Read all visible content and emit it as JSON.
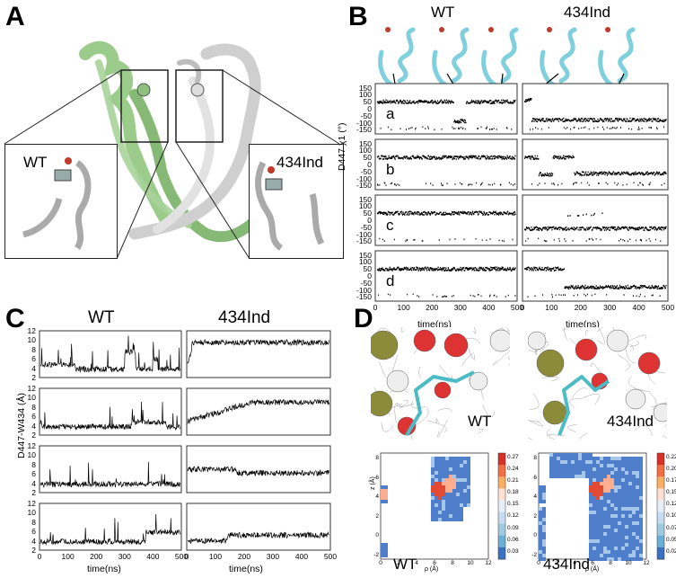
{
  "panels": {
    "A": {
      "letter": "A",
      "wt_label": "WT",
      "mut_label": "434Ind"
    },
    "B": {
      "letter": "B",
      "wt_label": "WT",
      "mut_label": "434Ind",
      "ylabel": "D447 χ1 (°)",
      "xlabel": "time(ns)",
      "row_labels": [
        "a",
        "b",
        "c",
        "d"
      ],
      "yticks": [
        "150",
        "100",
        "50",
        "0",
        "-50",
        "-100",
        "-150"
      ],
      "xticks": [
        "0",
        "100",
        "200",
        "300",
        "400",
        "500"
      ]
    },
    "C": {
      "letter": "C",
      "wt_label": "WT",
      "mut_label": "434Ind",
      "ylabel": "D447-W434 (Å)",
      "xlabel": "time(ns)",
      "yticks": [
        "12",
        "10",
        "8",
        "6",
        "4",
        "2"
      ],
      "xticks": [
        "0",
        "100",
        "200",
        "300",
        "400",
        "500"
      ]
    },
    "D": {
      "letter": "D",
      "wt_label": "WT",
      "mut_label": "434Ind",
      "xlabel": "ρ (Å)",
      "ylabel": "z (Å)",
      "yticks": [
        "8",
        "6",
        "4",
        "2",
        "0",
        "-2"
      ],
      "xticks": [
        "0",
        "2",
        "4",
        "6",
        "8",
        "10",
        "12"
      ],
      "cbar_wt": [
        "0.27",
        "0.24",
        "0.21",
        "0.18",
        "0.15",
        "0.12",
        "0.09",
        "0.06",
        "0.03"
      ],
      "cbar_mut": [
        "0.225",
        "0.200",
        "0.175",
        "0.150",
        "0.125",
        "0.100",
        "0.075",
        "0.050",
        "0.025"
      ]
    }
  },
  "colors": {
    "wt_protein": "#8fc07f",
    "mut_protein": "#d8d8d8",
    "ribbon_b": "#7fd0dc",
    "heat_low": "#3b6fc0",
    "heat_high": "#d73027"
  }
}
